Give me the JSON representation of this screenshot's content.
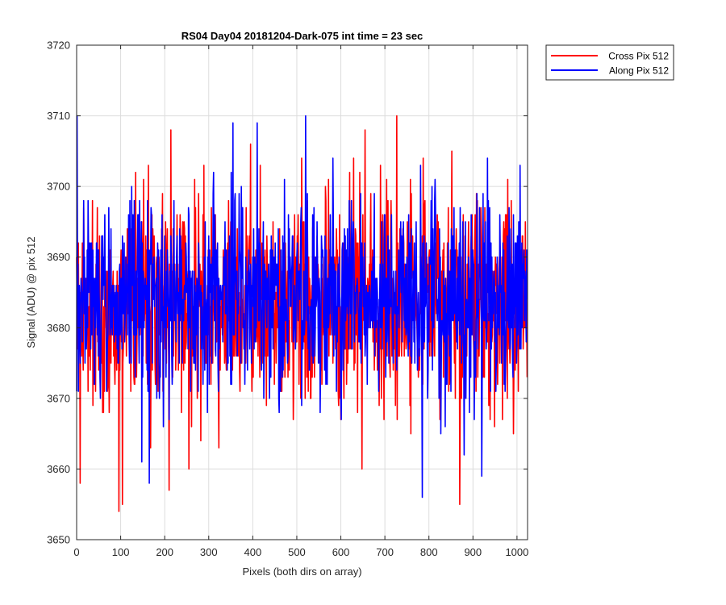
{
  "chart_data": {
    "type": "line",
    "title": "RS04 Day04 20181204-Dark-075 int time = 23 sec",
    "xlabel": "Pixels (both dirs on array)",
    "ylabel": "Signal (ADU) @ pix 512",
    "xlim": [
      0,
      1024
    ],
    "ylim": [
      3650,
      3720
    ],
    "xticks": [
      0,
      100,
      200,
      300,
      400,
      500,
      600,
      700,
      800,
      900,
      1000
    ],
    "yticks": [
      3650,
      3660,
      3670,
      3680,
      3690,
      3700,
      3710,
      3720
    ],
    "grid": true,
    "legend_position": "outside-top-right",
    "series": [
      {
        "name": "Cross Pix 512",
        "color": "#ff0000",
        "noise": {
          "n": 1024,
          "mean": 3683.5,
          "std": 7.5,
          "seed": 11
        },
        "extremes": [
          [
            8,
            3658
          ],
          [
            96,
            3654
          ],
          [
            104,
            3655
          ],
          [
            210,
            3657
          ],
          [
            255,
            3660
          ],
          [
            648,
            3660
          ],
          [
            870,
            3655
          ],
          [
            214,
            3708
          ],
          [
            655,
            3708
          ],
          [
            727,
            3710
          ]
        ]
      },
      {
        "name": "Along Pix 512",
        "color": "#0000ff",
        "noise": {
          "n": 1024,
          "mean": 3684,
          "std": 7.0,
          "seed": 29
        },
        "extremes": [
          [
            1,
            3710
          ],
          [
            165,
            3658
          ],
          [
            785,
            3656
          ],
          [
            920,
            3659
          ],
          [
            520,
            3710
          ],
          [
            355,
            3709
          ],
          [
            410,
            3709
          ],
          [
            880,
            3662
          ]
        ]
      }
    ]
  }
}
